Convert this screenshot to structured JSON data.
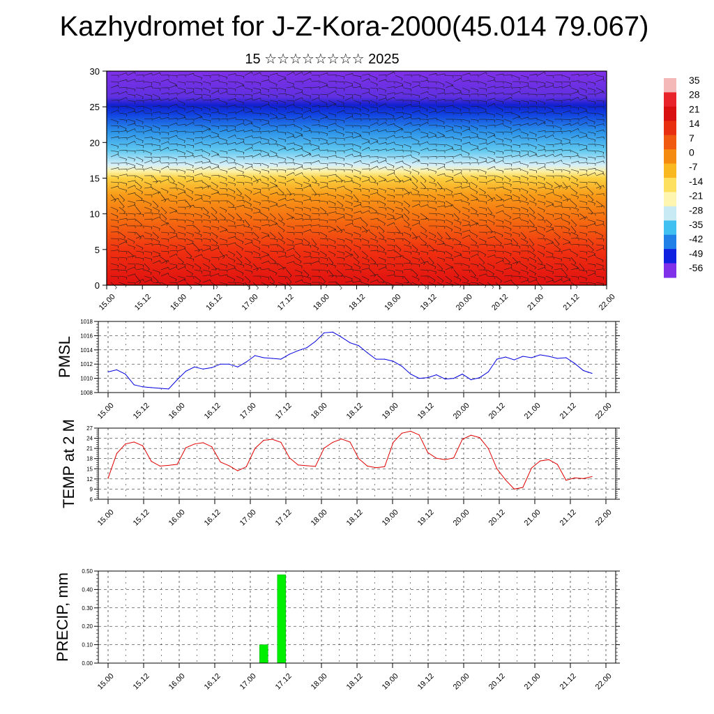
{
  "title": "Kazhydromet for J-Z-Kora-2000(45.014 79.067)",
  "subtitle": "15 ☆☆☆☆☆☆☆☆ 2025",
  "time_ticks": [
    "15.00",
    "15.12",
    "16.00",
    "16.12",
    "17.00",
    "17.12",
    "18.00",
    "18.12",
    "19.00",
    "19.12",
    "20.00",
    "20.12",
    "21.00",
    "21.12",
    "22.00"
  ],
  "colorbar": {
    "labels": [
      "35",
      "28",
      "21",
      "14",
      "7",
      "0",
      "-7",
      "-14",
      "-21",
      "-28",
      "-35",
      "-42",
      "-49",
      "-56"
    ],
    "colors": [
      "#f4b8b8",
      "#e8232a",
      "#d81010",
      "#e83010",
      "#f05a10",
      "#f58a10",
      "#fab820",
      "#fde060",
      "#fef5b0",
      "#c8eaf5",
      "#40c0f0",
      "#2080e8",
      "#1020e0",
      "#8030e8"
    ]
  },
  "chart_data": [
    {
      "type": "heatmap",
      "title": "",
      "description_layer": "temperature by height with wind barbs",
      "ylim": [
        0,
        30
      ],
      "yticks": [
        0,
        5,
        10,
        15,
        20,
        25,
        30
      ],
      "colors": {
        "low": "#e8232a",
        "mid": "#fde060",
        "cold": "#40c0f0",
        "coldest": "#1020e0",
        "top": "#8030e8"
      }
    },
    {
      "type": "line",
      "ylabel": "PMSL",
      "ylim": [
        1008,
        1018
      ],
      "yticks": [
        "1008",
        "1010",
        "1012",
        "1014",
        "1016",
        "1018"
      ],
      "color": "#0000e0",
      "values": [
        1010.9,
        1011.2,
        1010.6,
        1009.1,
        1008.8,
        1008.7,
        1008.6,
        1008.5,
        1009.8,
        1011.0,
        1011.6,
        1011.3,
        1011.5,
        1012.0,
        1012.0,
        1011.6,
        1012.3,
        1013.2,
        1012.9,
        1012.8,
        1012.7,
        1013.4,
        1013.9,
        1014.3,
        1015.2,
        1016.4,
        1016.5,
        1015.8,
        1015.0,
        1014.6,
        1013.6,
        1012.7,
        1012.7,
        1012.4,
        1011.7,
        1010.6,
        1010.0,
        1010.1,
        1010.5,
        1009.9,
        1010.0,
        1010.6,
        1009.8,
        1010.1,
        1010.9,
        1012.7,
        1013.0,
        1012.6,
        1013.1,
        1012.9,
        1013.3,
        1013.1,
        1012.8,
        1012.9,
        1012.1,
        1011.1,
        1010.7
      ]
    },
    {
      "type": "line",
      "ylabel": "TEMP at 2 M",
      "ylim": [
        6,
        27
      ],
      "yticks": [
        "6",
        "9",
        "12",
        "15",
        "18",
        "21",
        "24",
        "27"
      ],
      "color": "#e00000",
      "values": [
        12.2,
        19.5,
        22.3,
        22.9,
        21.8,
        17.2,
        15.8,
        16.0,
        16.3,
        21.2,
        22.3,
        22.7,
        21.5,
        17.0,
        15.9,
        14.4,
        15.6,
        21.0,
        23.4,
        23.7,
        22.8,
        18.2,
        16.1,
        15.9,
        15.7,
        21.1,
        22.8,
        23.8,
        22.9,
        18.0,
        15.8,
        15.3,
        15.6,
        22.8,
        25.5,
        26.1,
        25.0,
        19.8,
        18.1,
        17.7,
        18.2,
        23.7,
        24.9,
        24.2,
        21.0,
        15.0,
        11.7,
        9.0,
        9.5,
        15.2,
        17.3,
        17.7,
        16.3,
        11.6,
        12.3,
        12.1,
        12.7
      ]
    },
    {
      "type": "bar",
      "ylabel": "PRECIP, mm",
      "ylim": [
        0,
        0.5
      ],
      "yticks": [
        "0.00",
        "0.10",
        "0.20",
        "0.30",
        "0.40",
        "0.50"
      ],
      "color": "#00ee00",
      "bars": [
        {
          "x": "17.03",
          "value": 0.1
        },
        {
          "x": "17.06",
          "value": 0.48
        }
      ]
    }
  ]
}
